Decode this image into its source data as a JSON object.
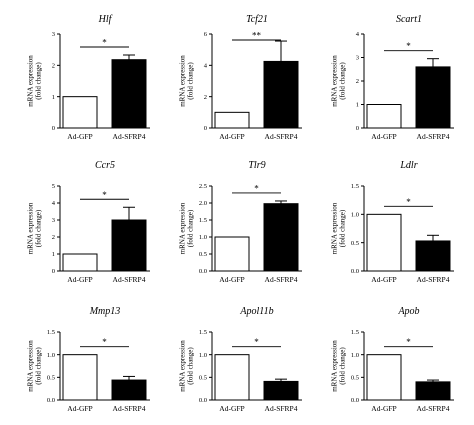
{
  "chart_data": [
    {
      "type": "bar",
      "title": "Hlf",
      "categories": [
        "Ad-GFP",
        "Ad-SFRP4"
      ],
      "values": [
        1.0,
        2.18
      ],
      "errors": [
        0,
        0.15
      ],
      "ylim": [
        0,
        3
      ],
      "yticks": [
        "0",
        "1",
        "2",
        "3"
      ],
      "ylabel": [
        "mRNA expression",
        "(fold change)"
      ],
      "significance": "*",
      "fills": [
        "#ffffff",
        "#000000"
      ]
    },
    {
      "type": "bar",
      "title": "Tcf21",
      "categories": [
        "Ad-GFP",
        "Ad-SFRP4"
      ],
      "values": [
        1.0,
        4.25
      ],
      "errors": [
        0,
        1.3
      ],
      "ylim": [
        0,
        6
      ],
      "yticks": [
        "0",
        "2",
        "4",
        "6"
      ],
      "ylabel": [
        "mRNA expression",
        "(fold change)"
      ],
      "significance": "**",
      "fills": [
        "#ffffff",
        "#000000"
      ]
    },
    {
      "type": "bar",
      "title": "Scart1",
      "categories": [
        "Ad-GFP",
        "Ad-SFRP4"
      ],
      "values": [
        1.0,
        2.6
      ],
      "errors": [
        0,
        0.35
      ],
      "ylim": [
        0,
        4
      ],
      "yticks": [
        "0",
        "1",
        "2",
        "3",
        "4"
      ],
      "ylabel": [
        "mRNA expression",
        "(fold change)"
      ],
      "significance": "*",
      "fills": [
        "#ffffff",
        "#000000"
      ]
    },
    {
      "type": "bar",
      "title": "Ccr5",
      "categories": [
        "Ad-GFP",
        "Ad-SFRP4"
      ],
      "values": [
        1.0,
        3.0
      ],
      "errors": [
        0,
        0.75
      ],
      "ylim": [
        0,
        5
      ],
      "yticks": [
        "0",
        "1",
        "2",
        "3",
        "4",
        "5"
      ],
      "ylabel": [
        "mRNA expression",
        "(fold change)"
      ],
      "significance": "*",
      "fills": [
        "#ffffff",
        "#000000"
      ]
    },
    {
      "type": "bar",
      "title": "Tlr9",
      "categories": [
        "Ad-GFP",
        "Ad-SFRP4"
      ],
      "values": [
        1.0,
        1.98
      ],
      "errors": [
        0,
        0.08
      ],
      "ylim": [
        0,
        2.5
      ],
      "yticks": [
        "0.0",
        "0.5",
        "1.0",
        "1.5",
        "2.0",
        "2.5"
      ],
      "ylabel": [
        "mRNA expression",
        "(fold change)"
      ],
      "significance": "*",
      "fills": [
        "#ffffff",
        "#000000"
      ]
    },
    {
      "type": "bar",
      "title": "Ldlr",
      "categories": [
        "Ad-GFP",
        "Ad-SFRP4"
      ],
      "values": [
        1.0,
        0.53
      ],
      "errors": [
        0,
        0.1
      ],
      "ylim": [
        0,
        1.5
      ],
      "yticks": [
        "0.0",
        "0.5",
        "1.0",
        "1.5"
      ],
      "ylabel": [
        "mRNA expression",
        "(fold change)"
      ],
      "significance": "*",
      "fills": [
        "#ffffff",
        "#000000"
      ]
    },
    {
      "type": "bar",
      "title": "Mmp13",
      "categories": [
        "Ad-GFP",
        "Ad-SFRP4"
      ],
      "values": [
        1.0,
        0.44
      ],
      "errors": [
        0,
        0.08
      ],
      "ylim": [
        0,
        1.5
      ],
      "yticks": [
        "0.0",
        "0.5",
        "1.0",
        "1.5"
      ],
      "ylabel": [
        "mRNA expression",
        "(fold change)"
      ],
      "significance": "*",
      "fills": [
        "#ffffff",
        "#000000"
      ]
    },
    {
      "type": "bar",
      "title": "Apol11b",
      "categories": [
        "Ad-GFP",
        "Ad-SFRP4"
      ],
      "values": [
        1.0,
        0.41
      ],
      "errors": [
        0,
        0.05
      ],
      "ylim": [
        0,
        1.5
      ],
      "yticks": [
        "0.0",
        "0.5",
        "1.0",
        "1.5"
      ],
      "ylabel": [
        "mRNA expression",
        "(fold change)"
      ],
      "significance": "*",
      "fills": [
        "#ffffff",
        "#000000"
      ]
    },
    {
      "type": "bar",
      "title": "Apob",
      "categories": [
        "Ad-GFP",
        "Ad-SFRP4"
      ],
      "values": [
        1.0,
        0.4
      ],
      "errors": [
        0,
        0.04
      ],
      "ylim": [
        0,
        1.5
      ],
      "yticks": [
        "0.0",
        "0.5",
        "1.0",
        "1.5"
      ],
      "ylabel": [
        "mRNA expression",
        "(fold change)"
      ],
      "significance": "*",
      "fills": [
        "#ffffff",
        "#000000"
      ]
    }
  ]
}
